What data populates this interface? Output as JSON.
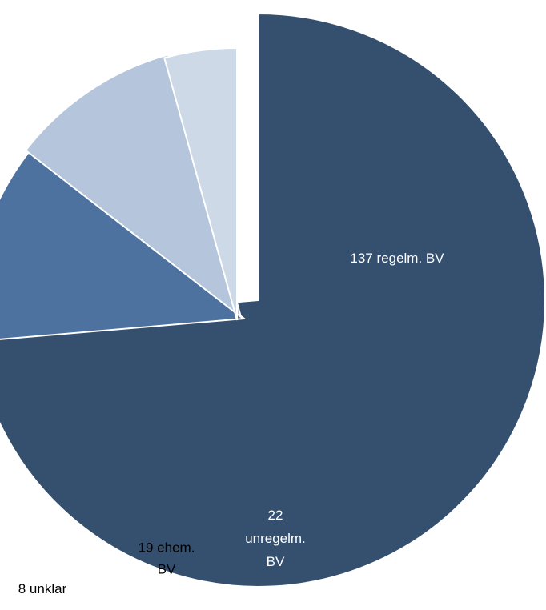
{
  "chart_data": {
    "type": "pie",
    "title": "",
    "categories": [
      "regelm. BV",
      "unregelm. BV",
      "ehem. BV",
      "unklar"
    ],
    "values": [
      137,
      22,
      19,
      8
    ],
    "labels": [
      [
        "137 regelm. BV"
      ],
      [
        "22",
        "unregelm.",
        "BV"
      ],
      [
        "19 ehem.",
        "BV"
      ],
      [
        "8 unklar"
      ]
    ],
    "colors": [
      "#354F6E",
      "#4D72A0",
      "#B4C5DC",
      "#CED9E8"
    ],
    "label_colors": [
      "#ffffff",
      "#ffffff",
      "#000000",
      "#000000"
    ],
    "start_angle_deg": 0,
    "direction": "clockwise",
    "exploded": true,
    "legend": "none"
  }
}
